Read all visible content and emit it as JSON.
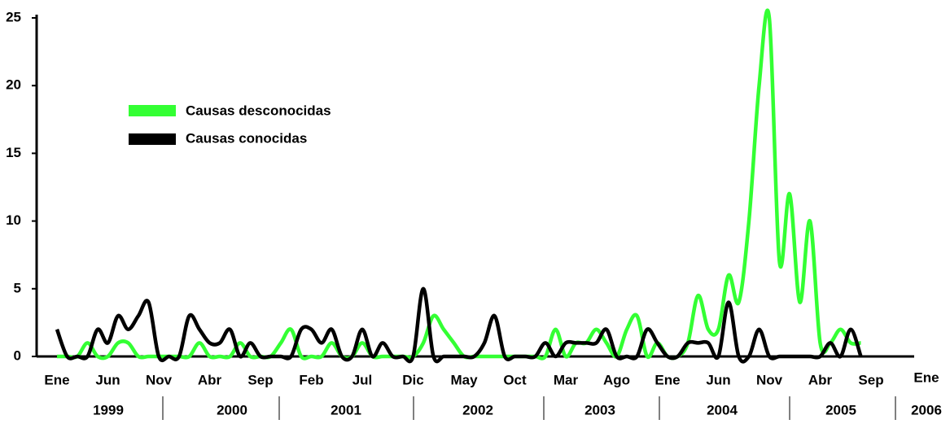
{
  "chart_data": {
    "type": "line",
    "categories": [
      "Ene",
      null,
      null,
      null,
      null,
      "Jun",
      null,
      null,
      null,
      null,
      "Nov",
      null,
      null,
      null,
      null,
      "Abr",
      null,
      null,
      null,
      null,
      "Sep",
      null,
      null,
      null,
      null,
      "Feb",
      null,
      null,
      null,
      null,
      "Jul",
      null,
      null,
      null,
      null,
      "Dic",
      null,
      null,
      null,
      null,
      "May",
      null,
      null,
      null,
      null,
      "Oct",
      null,
      null,
      null,
      null,
      "Mar",
      null,
      null,
      null,
      null,
      "Ago",
      null,
      null,
      null,
      null,
      "Ene",
      null,
      null,
      null,
      null,
      "Jun",
      null,
      null,
      null,
      null,
      "Nov",
      null,
      null,
      null,
      null,
      "Abr",
      null,
      null,
      null,
      null,
      "Sep",
      null,
      null,
      null,
      "Ene"
    ],
    "years": [
      "1999",
      "2000",
      "2001",
      "2002",
      "2003",
      "2004",
      "2005",
      "2006"
    ],
    "series": [
      {
        "name": "Causas desconocidas",
        "color": "#33ff33",
        "values": [
          0,
          0,
          0,
          1,
          0,
          0,
          1,
          1,
          0,
          0,
          0,
          0,
          0,
          0,
          1,
          0,
          0,
          0,
          1,
          0,
          0,
          0,
          1,
          2,
          0,
          0,
          0,
          1,
          0,
          0,
          1,
          0,
          0,
          0,
          0,
          0,
          1,
          3,
          2,
          1,
          0,
          0,
          0,
          0,
          0,
          0,
          0,
          0,
          0,
          2,
          0,
          1,
          1,
          2,
          1,
          0,
          2,
          3,
          0,
          1,
          0,
          0,
          1,
          4.5,
          2,
          2,
          6,
          4,
          10,
          20,
          25,
          7,
          12,
          4,
          10,
          1,
          1,
          2,
          1,
          1,
          null,
          null,
          null,
          null,
          null
        ]
      },
      {
        "name": "Causas conocidas",
        "color": "#000000",
        "values": [
          2,
          0,
          0,
          0,
          2,
          1,
          3,
          2,
          3,
          4,
          0,
          0,
          0,
          3,
          2,
          1,
          1,
          2,
          0,
          1,
          0,
          0,
          0,
          0,
          2,
          2,
          1,
          2,
          0,
          0,
          2,
          0,
          1,
          0,
          0,
          0,
          5,
          0,
          0,
          0,
          0,
          0,
          1,
          3,
          0,
          0,
          0,
          0,
          1,
          0,
          1,
          1,
          1,
          1,
          2,
          0,
          0,
          0,
          2,
          1,
          0,
          0,
          1,
          1,
          1,
          0,
          4,
          0,
          0,
          2,
          0,
          0,
          0,
          0,
          0,
          0,
          1,
          0,
          2,
          0,
          null,
          null,
          null,
          null,
          null
        ]
      }
    ],
    "ylim": [
      0,
      25
    ],
    "yticks": [
      0,
      5,
      10,
      15,
      20,
      25
    ]
  }
}
